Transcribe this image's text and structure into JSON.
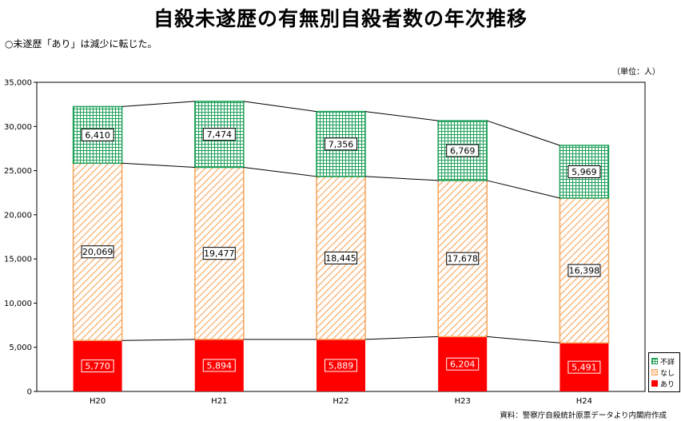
{
  "title": "自殺未遂歴の有無別自殺者数の年次推移",
  "subtitle": "○未遂歴「あり」は減少に転じた。",
  "unit_label": "（単位：人）",
  "source": "資料：警察庁自殺統計原票データより内閣府作成",
  "colors": {
    "ari": "#ff0000",
    "nashi": "#f7a45a",
    "fusho": "#1fa15a"
  },
  "chart_data": {
    "type": "bar",
    "stacked": true,
    "title": "自殺未遂歴の有無別自殺者数の年次推移",
    "xlabel": "",
    "ylabel": "",
    "categories": [
      "H20",
      "H21",
      "H22",
      "H23",
      "H24"
    ],
    "ylim": [
      0,
      35000
    ],
    "yticks": [
      0,
      5000,
      10000,
      15000,
      20000,
      25000,
      30000,
      35000
    ],
    "ytick_labels": [
      "0",
      "5,000",
      "10,000",
      "15,000",
      "20,000",
      "25,000",
      "30,000",
      "35,000"
    ],
    "series": [
      {
        "name": "あり",
        "values": [
          5770,
          5894,
          5889,
          6204,
          5491
        ],
        "labels": [
          "5,770",
          "5,894",
          "5,889",
          "6,204",
          "5,491"
        ]
      },
      {
        "name": "なし",
        "values": [
          20069,
          19477,
          18445,
          17678,
          16398
        ],
        "labels": [
          "20,069",
          "19,477",
          "18,445",
          "17,678",
          "16,398"
        ]
      },
      {
        "name": "不詳",
        "values": [
          6410,
          7474,
          7356,
          6769,
          5969
        ],
        "labels": [
          "6,410",
          "7,474",
          "7,356",
          "6,769",
          "5,969"
        ]
      }
    ],
    "legend_position": "bottom-right",
    "legend_order": [
      "不詳",
      "なし",
      "あり"
    ],
    "grid": false
  }
}
